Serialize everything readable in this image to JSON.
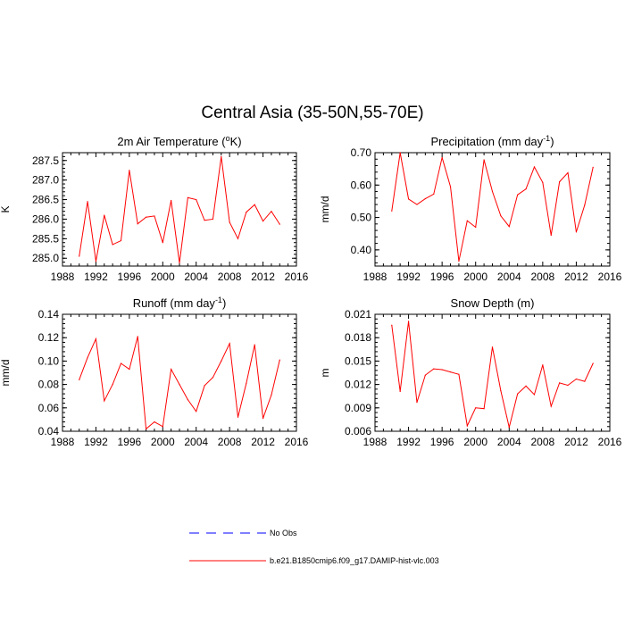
{
  "title": "Central Asia (35-50N,55-70E)",
  "colors": {
    "model": "#ff0000",
    "obs": "#0000ff",
    "axis": "#000000"
  },
  "legend": {
    "entries": [
      {
        "label": "No Obs",
        "style": "dashed",
        "color": "#0000ff"
      },
      {
        "label": "b.e21.B1850cmip6.f09_g17.DAMIP-hist-vlc.003",
        "style": "solid",
        "color": "#ff0000"
      }
    ]
  },
  "chart_data": [
    {
      "type": "line",
      "title": "2m Air Temperature (",
      "title_sup": "o",
      "title_after": "K)",
      "ylabel": "K",
      "xlim": [
        1988,
        2016
      ],
      "ylim": [
        284.8,
        287.7
      ],
      "xticks": [
        1988,
        1992,
        1996,
        2000,
        2004,
        2008,
        2012,
        2016
      ],
      "yticks": [
        285.0,
        285.5,
        286.0,
        286.5,
        287.0,
        287.5
      ],
      "ytick_labels": [
        "285.0",
        "285.5",
        "286.0",
        "286.5",
        "287.0",
        "287.5"
      ],
      "x": [
        1990,
        1991,
        1992,
        1993,
        1994,
        1995,
        1996,
        1997,
        1998,
        1999,
        2000,
        2001,
        2002,
        2003,
        2004,
        2005,
        2006,
        2007,
        2008,
        2009,
        2010,
        2011,
        2012,
        2013,
        2014
      ],
      "series": [
        {
          "name": "b.e21.B1850cmip6.f09_g17.DAMIP-hist-vlc.003",
          "values": [
            285.05,
            286.45,
            284.92,
            286.1,
            285.35,
            285.45,
            287.25,
            285.88,
            286.05,
            286.08,
            285.4,
            286.48,
            284.88,
            286.55,
            286.5,
            285.97,
            286.0,
            287.6,
            285.92,
            285.5,
            286.18,
            286.37,
            285.95,
            286.2,
            285.87
          ]
        }
      ]
    },
    {
      "type": "line",
      "title": "Precipitation (mm day",
      "title_sup": "-1",
      "title_after": ")",
      "ylabel": "mm/d",
      "xlim": [
        1988,
        2016
      ],
      "ylim": [
        0.35,
        0.7
      ],
      "xticks": [
        1988,
        1992,
        1996,
        2000,
        2004,
        2008,
        2012,
        2016
      ],
      "yticks": [
        0.4,
        0.5,
        0.6,
        0.7
      ],
      "ytick_labels": [
        "0.40",
        "0.50",
        "0.60",
        "0.70"
      ],
      "x": [
        1990,
        1991,
        1992,
        1993,
        1994,
        1995,
        1996,
        1997,
        1998,
        1999,
        2000,
        2001,
        2002,
        2003,
        2004,
        2005,
        2006,
        2007,
        2008,
        2009,
        2010,
        2011,
        2012,
        2013,
        2014
      ],
      "series": [
        {
          "name": "b.e21.B1850cmip6.f09_g17.DAMIP-hist-vlc.003",
          "values": [
            0.52,
            0.7,
            0.557,
            0.54,
            0.558,
            0.572,
            0.685,
            0.595,
            0.365,
            0.49,
            0.47,
            0.678,
            0.58,
            0.505,
            0.472,
            0.57,
            0.588,
            0.656,
            0.608,
            0.445,
            0.61,
            0.638,
            0.455,
            0.538,
            0.655
          ]
        }
      ]
    },
    {
      "type": "line",
      "title": "Runoff (mm day",
      "title_sup": "-1",
      "title_after": ")",
      "ylabel": "mm/d",
      "xlim": [
        1988,
        2016
      ],
      "ylim": [
        0.04,
        0.14
      ],
      "xticks": [
        1988,
        1992,
        1996,
        2000,
        2004,
        2008,
        2012,
        2016
      ],
      "yticks": [
        0.04,
        0.06,
        0.08,
        0.1,
        0.12,
        0.14
      ],
      "ytick_labels": [
        "0.04",
        "0.06",
        "0.08",
        "0.10",
        "0.12",
        "0.14"
      ],
      "x": [
        1990,
        1991,
        1992,
        1993,
        1994,
        1995,
        1996,
        1997,
        1998,
        1999,
        2000,
        2001,
        2002,
        2003,
        2004,
        2005,
        2006,
        2007,
        2008,
        2009,
        2010,
        2011,
        2012,
        2013,
        2014
      ],
      "series": [
        {
          "name": "b.e21.B1850cmip6.f09_g17.DAMIP-hist-vlc.003",
          "values": [
            0.084,
            0.103,
            0.119,
            0.066,
            0.08,
            0.098,
            0.093,
            0.121,
            0.042,
            0.048,
            0.044,
            0.093,
            0.08,
            0.067,
            0.057,
            0.079,
            0.086,
            0.1,
            0.115,
            0.052,
            0.081,
            0.114,
            0.051,
            0.071,
            0.101
          ]
        }
      ]
    },
    {
      "type": "line",
      "title": "Snow Depth (m)",
      "title_sup": "",
      "title_after": "",
      "ylabel": "m",
      "xlim": [
        1988,
        2016
      ],
      "ylim": [
        0.006,
        0.021
      ],
      "xticks": [
        1988,
        1992,
        1996,
        2000,
        2004,
        2008,
        2012,
        2016
      ],
      "yticks": [
        0.006,
        0.009,
        0.012,
        0.015,
        0.018,
        0.021
      ],
      "ytick_labels": [
        "0.006",
        "0.009",
        "0.012",
        "0.015",
        "0.018",
        "0.021"
      ],
      "x": [
        1990,
        1991,
        1992,
        1993,
        1994,
        1995,
        1996,
        1997,
        1998,
        1999,
        2000,
        2001,
        2002,
        2003,
        2004,
        2005,
        2006,
        2007,
        2008,
        2009,
        2010,
        2011,
        2012,
        2013,
        2014
      ],
      "series": [
        {
          "name": "b.e21.B1850cmip6.f09_g17.DAMIP-hist-vlc.003",
          "values": [
            0.0196,
            0.0111,
            0.0201,
            0.0097,
            0.0132,
            0.014,
            0.0139,
            0.0136,
            0.0133,
            0.0067,
            0.009,
            0.0089,
            0.0168,
            0.0112,
            0.0065,
            0.0108,
            0.0118,
            0.0107,
            0.0145,
            0.0092,
            0.0122,
            0.0119,
            0.0127,
            0.0124,
            0.0147
          ]
        }
      ]
    }
  ]
}
